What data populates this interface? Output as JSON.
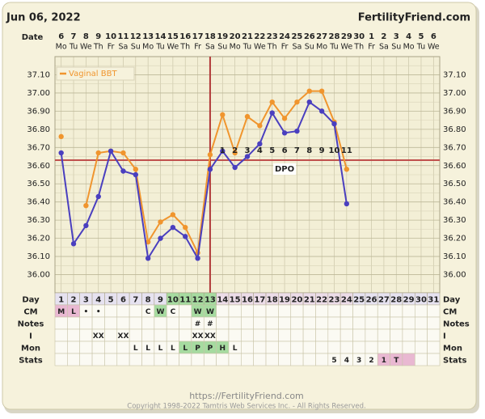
{
  "header": {
    "date": "Jun 06, 2022",
    "brand": "FertilityFriend.com"
  },
  "chart_data": {
    "type": "line",
    "date_label": "Date",
    "day_label": "Day",
    "categories": [
      1,
      2,
      3,
      4,
      5,
      6,
      7,
      8,
      9,
      10,
      11,
      12,
      13,
      14,
      15,
      16,
      17,
      18,
      19,
      20,
      21,
      22,
      23,
      24,
      25,
      26,
      27,
      28,
      29,
      30,
      31
    ],
    "dates": [
      6,
      7,
      8,
      9,
      10,
      11,
      12,
      13,
      14,
      15,
      16,
      17,
      18,
      19,
      20,
      21,
      22,
      23,
      24,
      25,
      26,
      27,
      28,
      29,
      30,
      1,
      2,
      3,
      4,
      5,
      6
    ],
    "weekdays": [
      "Mo",
      "Tu",
      "We",
      "Th",
      "Fr",
      "Sa",
      "Su",
      "Mo",
      "Tu",
      "We",
      "Th",
      "Fr",
      "Sa",
      "Su",
      "Mo",
      "Tu",
      "We",
      "Th",
      "Fr",
      "Sa",
      "Su",
      "Mo",
      "Tu",
      "We",
      "Th",
      "Fr",
      "Sa",
      "Su",
      "Mo",
      "Tu",
      "We"
    ],
    "day_colors": [
      null,
      null,
      null,
      null,
      null,
      null,
      null,
      null,
      null,
      "#a6dba0",
      "#a6dba0",
      "#a6dba0",
      "#a6dba0",
      "#ecdce8",
      "#ecdce8",
      "#ecdce8",
      "#ecdce8",
      "#ecdce8",
      "#ecdce8",
      "#ecdce8",
      "#ecdce8",
      "#ecdce8",
      "#ecdce8",
      "#ecdce8",
      null,
      null,
      null,
      null,
      null,
      null,
      null
    ],
    "ylim": [
      35.9,
      37.2
    ],
    "yticks": [
      {
        "value": 36.0,
        "label": "36.00"
      },
      {
        "value": 36.1,
        "label": "36.10"
      },
      {
        "value": 36.2,
        "label": "36.20"
      },
      {
        "value": 36.3,
        "label": "36.30"
      },
      {
        "value": 36.4,
        "label": "36.40"
      },
      {
        "value": 36.5,
        "label": "36.50"
      },
      {
        "value": 36.6,
        "label": "36.60"
      },
      {
        "value": 36.7,
        "label": "36.70"
      },
      {
        "value": 36.8,
        "label": "36.80"
      },
      {
        "value": 36.9,
        "label": "36.90"
      },
      {
        "value": 37.0,
        "label": "37.00"
      },
      {
        "value": 37.1,
        "label": "37.10"
      }
    ],
    "grid": true,
    "legend": "upper-left",
    "series": [
      {
        "color": "#4a3fbf",
        "values": [
          36.67,
          36.17,
          36.27,
          36.43,
          36.68,
          36.57,
          36.55,
          36.09,
          36.2,
          36.26,
          36.21,
          36.09,
          36.58,
          36.68,
          36.59,
          36.65,
          36.72,
          36.89,
          36.78,
          36.79,
          36.95,
          36.9,
          36.83,
          36.39,
          null,
          null,
          null,
          null,
          null,
          null,
          null
        ]
      },
      {
        "name": "Vaginal BBT",
        "color": "#f0952e",
        "values": [
          36.76,
          null,
          36.38,
          36.67,
          36.68,
          36.67,
          36.58,
          36.18,
          36.29,
          36.33,
          36.26,
          36.12,
          36.66,
          36.88,
          36.67,
          36.87,
          36.82,
          36.95,
          36.86,
          36.95,
          37.01,
          37.01,
          36.84,
          36.58,
          null,
          null,
          null,
          null,
          null,
          null,
          null
        ]
      }
    ],
    "coverline": 36.63,
    "coverline_color": "#c0504d",
    "ovulation_day": 13,
    "ovulation_color": "#b23a3a",
    "dpo": {
      "label": "DPO",
      "days": [
        14,
        15,
        16,
        17,
        18,
        19,
        20,
        21,
        22,
        23,
        24
      ],
      "values": [
        1,
        2,
        3,
        4,
        5,
        6,
        7,
        8,
        9,
        10,
        11
      ]
    }
  },
  "table": {
    "rows": [
      {
        "label": "CM",
        "cells": [
          "M",
          "L",
          "•",
          "•",
          null,
          null,
          null,
          "C",
          "W",
          "C",
          null,
          "W",
          "W",
          null,
          null,
          null,
          null,
          null,
          null,
          null,
          null,
          null,
          null,
          null,
          null,
          null,
          null,
          null,
          null,
          null,
          null
        ],
        "colors": [
          "#e9b8d2",
          "#e9b8d2",
          null,
          null,
          null,
          null,
          null,
          null,
          "#a6dba0",
          null,
          null,
          "#a6dba0",
          "#a6dba0",
          null,
          null,
          null,
          null,
          null,
          null,
          null,
          null,
          null,
          null,
          null,
          null,
          null,
          null,
          null,
          null,
          null,
          null
        ]
      },
      {
        "label": "Notes",
        "cells": [
          null,
          null,
          null,
          null,
          null,
          null,
          null,
          null,
          null,
          null,
          null,
          "#",
          "#",
          null,
          null,
          null,
          null,
          null,
          null,
          null,
          null,
          null,
          null,
          null,
          null,
          null,
          null,
          null,
          null,
          null,
          null
        ]
      },
      {
        "label": "I",
        "cells": [
          null,
          null,
          null,
          "XX",
          null,
          "XX",
          null,
          null,
          null,
          null,
          null,
          "XX",
          "XX",
          null,
          null,
          null,
          null,
          null,
          null,
          null,
          null,
          null,
          null,
          null,
          null,
          null,
          null,
          null,
          null,
          null,
          null
        ]
      },
      {
        "label": "Mon",
        "cells": [
          null,
          null,
          null,
          null,
          null,
          null,
          "L",
          "L",
          "L",
          "L",
          "L",
          "P",
          "P",
          "H",
          "L",
          null,
          null,
          null,
          null,
          null,
          null,
          null,
          null,
          null,
          null,
          null,
          null,
          null,
          null,
          null,
          null
        ],
        "colors": [
          null,
          null,
          null,
          null,
          null,
          null,
          null,
          null,
          null,
          null,
          "#a6dba0",
          "#a6dba0",
          "#a6dba0",
          "#a6dba0",
          null,
          null,
          null,
          null,
          null,
          null,
          null,
          null,
          null,
          null,
          null,
          null,
          null,
          null,
          null,
          null,
          null
        ]
      },
      {
        "label": "Stats",
        "cells": [
          null,
          null,
          null,
          null,
          null,
          null,
          null,
          null,
          null,
          null,
          null,
          null,
          null,
          null,
          null,
          null,
          null,
          null,
          null,
          null,
          null,
          null,
          "5",
          "4",
          "3",
          "2",
          "1",
          "T",
          null,
          null,
          null
        ],
        "colors": [
          null,
          null,
          null,
          null,
          null,
          null,
          null,
          null,
          null,
          null,
          null,
          null,
          null,
          null,
          null,
          null,
          null,
          null,
          null,
          null,
          null,
          null,
          null,
          null,
          null,
          null,
          "#e9b8d2",
          "#e9b8d2",
          "#e9b8d2",
          null,
          null
        ]
      }
    ]
  },
  "footer": {
    "url": "https://FertilityFriend.com",
    "copyright": "Copyright 1998-2022 Tamtris Web Services Inc. - All Rights Reserved."
  }
}
